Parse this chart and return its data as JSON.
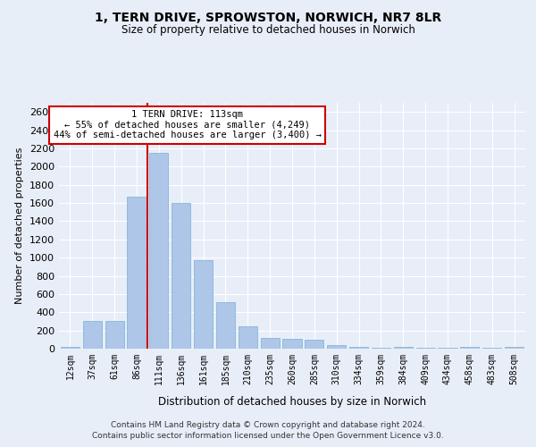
{
  "title": "1, TERN DRIVE, SPROWSTON, NORWICH, NR7 8LR",
  "subtitle": "Size of property relative to detached houses in Norwich",
  "xlabel": "Distribution of detached houses by size in Norwich",
  "ylabel": "Number of detached properties",
  "bar_color": "#aec6e8",
  "bar_edge_color": "#7aafd4",
  "background_color": "#e8eef8",
  "grid_color": "#ffffff",
  "categories": [
    "12sqm",
    "37sqm",
    "61sqm",
    "86sqm",
    "111sqm",
    "136sqm",
    "161sqm",
    "185sqm",
    "210sqm",
    "235sqm",
    "260sqm",
    "285sqm",
    "310sqm",
    "334sqm",
    "359sqm",
    "384sqm",
    "409sqm",
    "434sqm",
    "458sqm",
    "483sqm",
    "508sqm"
  ],
  "values": [
    20,
    300,
    300,
    1670,
    2150,
    1600,
    970,
    510,
    245,
    120,
    105,
    95,
    42,
    18,
    5,
    20,
    5,
    5,
    20,
    5,
    20
  ],
  "property_bin_index": 4,
  "property_line_color": "#cc0000",
  "annotation_line1": "1 TERN DRIVE: 113sqm",
  "annotation_line2": "← 55% of detached houses are smaller (4,249)",
  "annotation_line3": "44% of semi-detached houses are larger (3,400) →",
  "annotation_box_facecolor": "#ffffff",
  "annotation_box_edgecolor": "#cc0000",
  "ylim": [
    0,
    2700
  ],
  "yticks": [
    0,
    200,
    400,
    600,
    800,
    1000,
    1200,
    1400,
    1600,
    1800,
    2000,
    2200,
    2400,
    2600
  ],
  "footer_line1": "Contains HM Land Registry data © Crown copyright and database right 2024.",
  "footer_line2": "Contains public sector information licensed under the Open Government Licence v3.0."
}
